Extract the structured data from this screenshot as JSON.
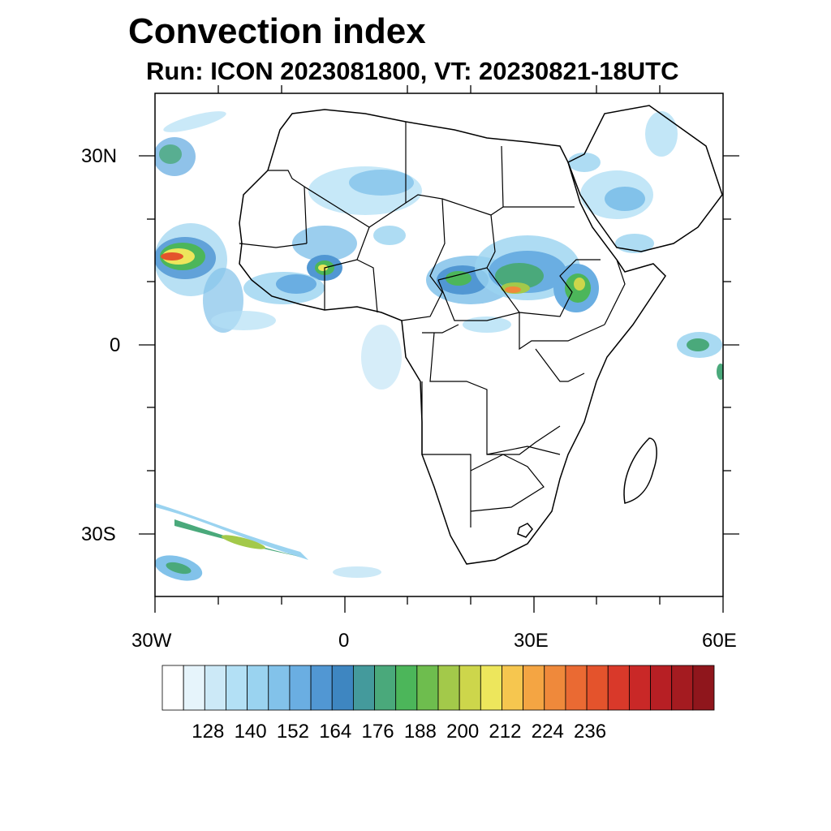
{
  "title": "Convection index",
  "subtitle": "Run: ICON 2023081800,  VT: 20230821-18UTC",
  "axes": {
    "x_ticks": [
      "30W",
      "0",
      "30E",
      "60E"
    ],
    "y_ticks": [
      "30N",
      "0",
      "30S"
    ],
    "lon_range": [
      -30,
      60
    ],
    "lat_range": [
      -40,
      40
    ]
  },
  "colorbar": {
    "labels": [
      "128",
      "140",
      "152",
      "164",
      "176",
      "188",
      "200",
      "212",
      "224",
      "236"
    ],
    "colors": [
      "#ffffff",
      "#e6f4fb",
      "#cce9f7",
      "#b3e0f5",
      "#9ad3f0",
      "#82c2ea",
      "#6aaee2",
      "#5197d3",
      "#3e86c1",
      "#449a9c",
      "#4aa97b",
      "#4cb65a",
      "#6ebd4e",
      "#a3c94a",
      "#cdd64b",
      "#ede65c",
      "#f6c64f",
      "#f4a543",
      "#ef893b",
      "#ea6a33",
      "#e4532c",
      "#d9392a",
      "#c92827",
      "#b71f24",
      "#a41b20",
      "#8f161c"
    ]
  }
}
